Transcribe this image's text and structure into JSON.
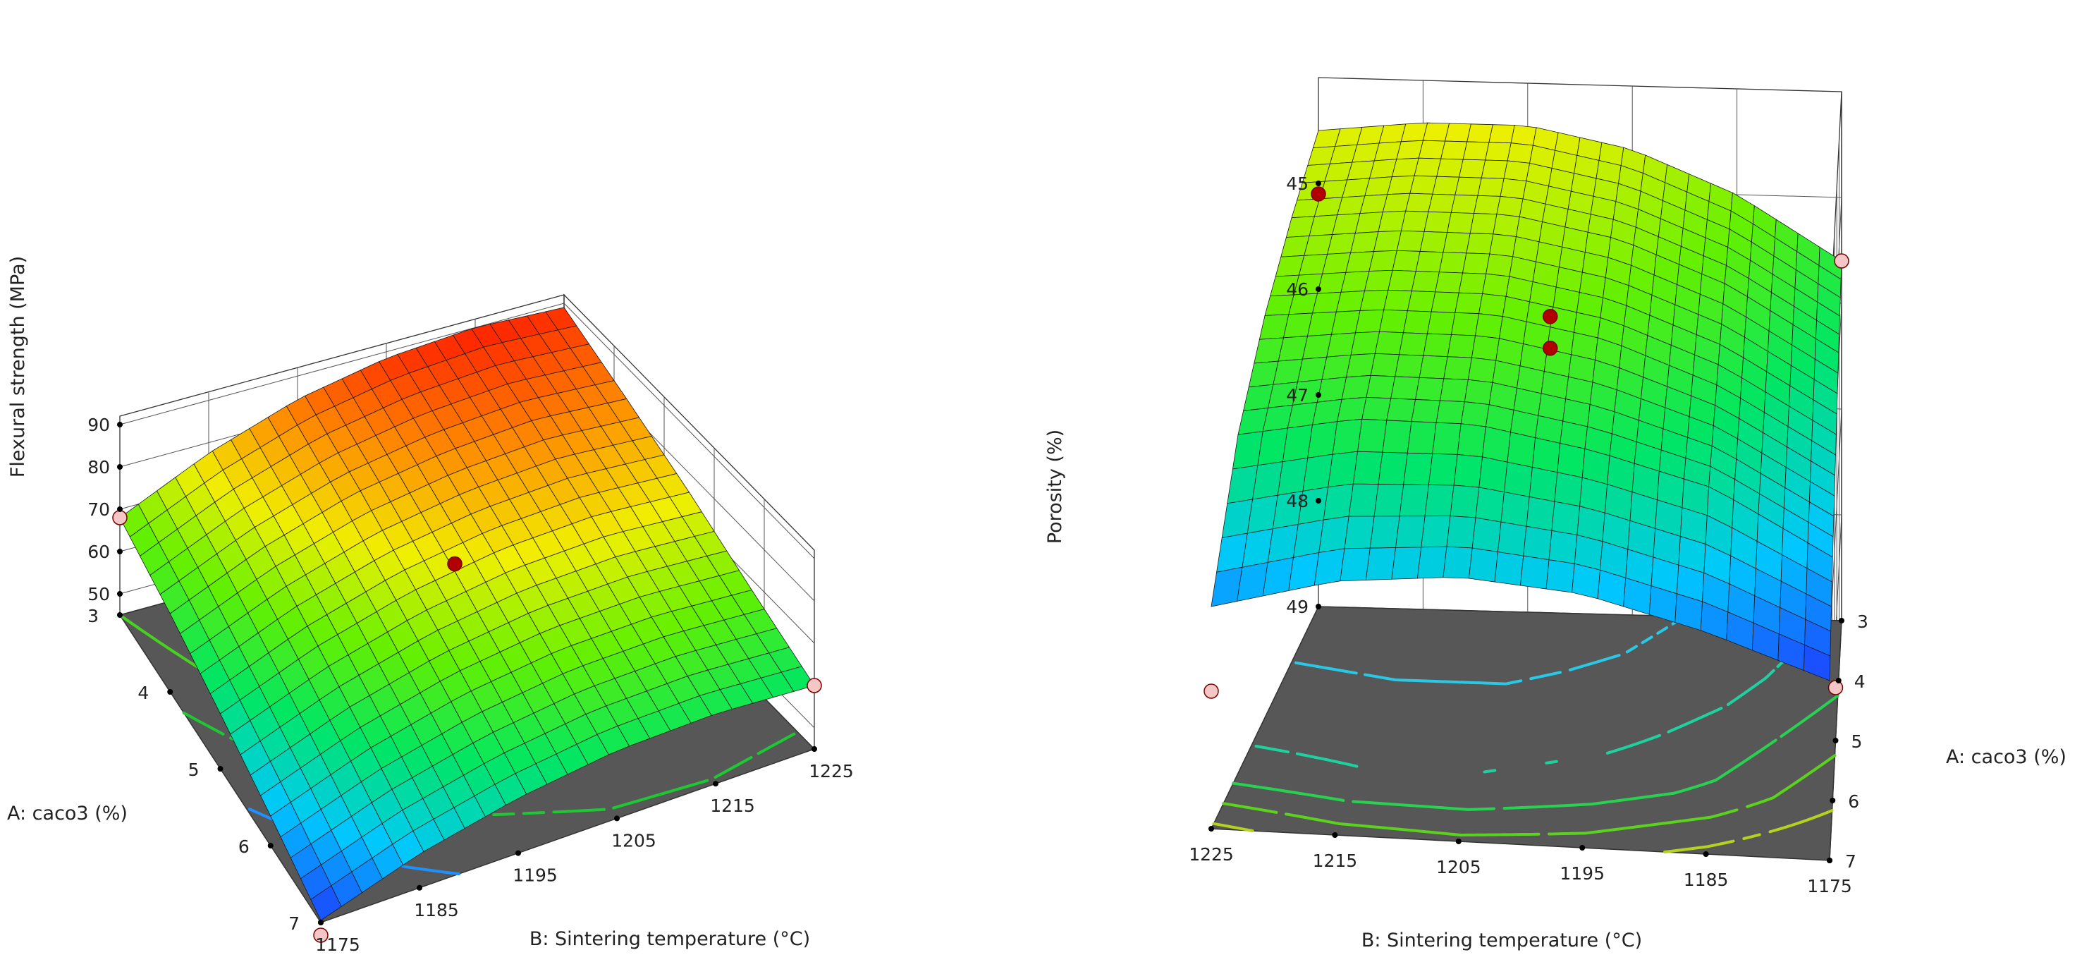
{
  "chart_data": [
    {
      "type": "surface",
      "zlabel": "Flexural strength (MPa)",
      "xlabel": "A: caco3 (%)",
      "ylabel": "B: Sintering temperature (°C)",
      "a_ticks": [
        "3",
        "4",
        "5",
        "6",
        "7"
      ],
      "b_ticks": [
        "1175",
        "1185",
        "1195",
        "1205",
        "1215",
        "1225"
      ],
      "z_ticks": [
        "50",
        "60",
        "70",
        "80",
        "90"
      ],
      "a_range": [
        3,
        7
      ],
      "b_range": [
        1175,
        1225
      ],
      "z_range": [
        45,
        92
      ],
      "surface_grid": {
        "a": [
          3,
          4,
          5,
          6,
          7
        ],
        "b": [
          1175,
          1185,
          1195,
          1205,
          1215,
          1225
        ],
        "z": [
          [
            68.0,
            77.5,
            84.5,
            88.5,
            90.0,
            89.0
          ],
          [
            63.5,
            72.5,
            79.0,
            82.5,
            84.0,
            82.5
          ],
          [
            58.0,
            66.5,
            72.5,
            76.0,
            77.0,
            75.5
          ],
          [
            52.0,
            60.0,
            65.5,
            68.5,
            69.0,
            67.5
          ],
          [
            45.5,
            53.0,
            58.0,
            61.0,
            61.5,
            60.0
          ]
        ]
      },
      "design_points": [
        {
          "a": 3,
          "b": 1175,
          "z": 68,
          "position": "below"
        },
        {
          "a": 5,
          "b": 1200,
          "z": 76,
          "position": "above"
        },
        {
          "a": 7,
          "b": 1225,
          "z": 60,
          "position": "below"
        },
        {
          "a": 7,
          "b": 1175,
          "z": 42,
          "position": "below"
        }
      ],
      "contours": [
        {
          "z": 55,
          "color": "#1e90ff"
        },
        {
          "z": 62,
          "color": "#1ec832"
        },
        {
          "z": 68,
          "color": "#46d21e"
        },
        {
          "z": 74,
          "color": "#b4dc14"
        },
        {
          "z": 80,
          "color": "#e6c800"
        },
        {
          "z": 86,
          "color": "#f07800"
        }
      ],
      "colormap": [
        "#1e3cff",
        "#00c8ff",
        "#00e664",
        "#64f000",
        "#f0f000",
        "#ff8c00",
        "#ff1e00"
      ]
    },
    {
      "type": "surface",
      "zlabel": "Porosity (%)",
      "xlabel": "A: caco3 (%)",
      "ylabel": "B: Sintering temperature (°C)",
      "a_ticks": [
        "3",
        "4",
        "5",
        "6",
        "7"
      ],
      "b_ticks": [
        "1175",
        "1185",
        "1195",
        "1205",
        "1215",
        "1225"
      ],
      "z_ticks": [
        "45",
        "46",
        "47",
        "48",
        "49"
      ],
      "z_reversed": true,
      "a_range": [
        3,
        7
      ],
      "b_range": [
        1175,
        1225
      ],
      "z_range": [
        44,
        49
      ],
      "surface_grid": {
        "a": [
          3,
          4,
          5,
          6,
          7
        ],
        "b": [
          1175,
          1185,
          1195,
          1205,
          1215,
          1225
        ],
        "z": [
          [
            45.6,
            45.0,
            44.6,
            44.4,
            44.4,
            44.5
          ],
          [
            45.9,
            45.3,
            44.9,
            44.7,
            44.7,
            44.8
          ],
          [
            46.3,
            45.7,
            45.3,
            45.1,
            45.1,
            45.2
          ],
          [
            46.7,
            46.1,
            45.8,
            45.6,
            45.6,
            45.8
          ],
          [
            47.3,
            46.9,
            46.6,
            46.5,
            46.6,
            46.9
          ]
        ]
      },
      "design_points": [
        {
          "a": 3,
          "b": 1225,
          "z": 45.1,
          "position": "above"
        },
        {
          "a": 5,
          "b": 1200,
          "z": 45.1,
          "position": "above"
        },
        {
          "a": 5,
          "b": 1200,
          "z": 45.4,
          "position": "above"
        },
        {
          "a": 7,
          "b": 1225,
          "z": 47.7,
          "position": "below"
        },
        {
          "a": 3,
          "b": 1175,
          "z": 45.6,
          "position": "below"
        },
        {
          "a": 5,
          "b": 1175,
          "z": 48.5,
          "position": "below"
        }
      ],
      "contours": [
        {
          "z": 44.8,
          "color": "#28c8e6"
        },
        {
          "z": 45.5,
          "color": "#1ed2a0"
        },
        {
          "z": 46.0,
          "color": "#28d250"
        },
        {
          "z": 46.4,
          "color": "#5ad21e"
        },
        {
          "z": 46.8,
          "color": "#b4d21e"
        }
      ],
      "colormap": [
        "#1e3cff",
        "#00c8ff",
        "#00e664",
        "#64f000",
        "#f0f000"
      ]
    }
  ]
}
